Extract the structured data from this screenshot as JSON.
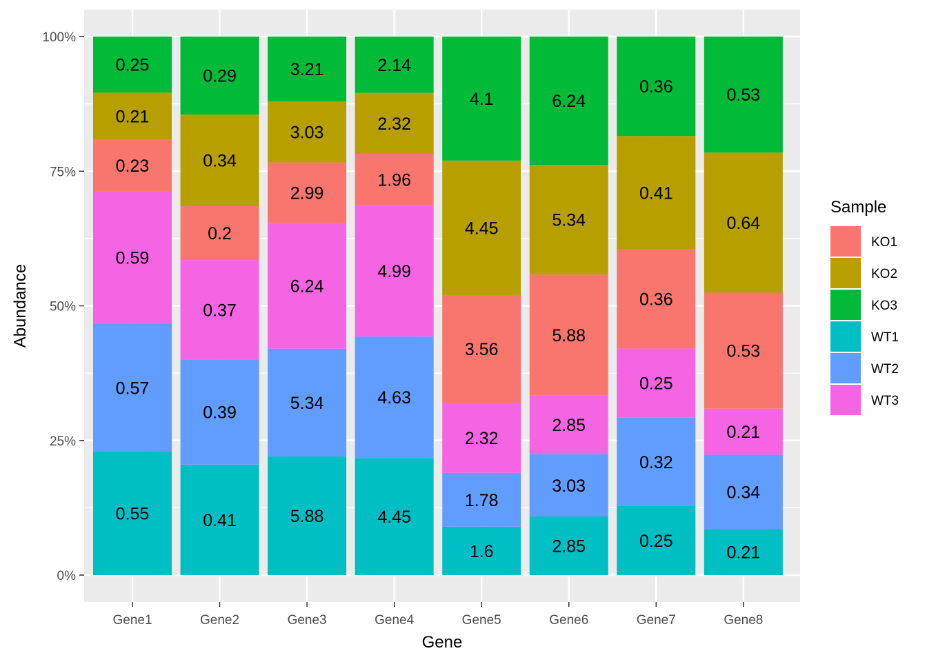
{
  "chart_data": {
    "type": "bar",
    "stacked": true,
    "normalized": true,
    "categories": [
      "Gene1",
      "Gene2",
      "Gene3",
      "Gene4",
      "Gene5",
      "Gene6",
      "Gene7",
      "Gene8"
    ],
    "series": [
      {
        "name": "KO1",
        "color": "#F8766D",
        "values": [
          0.23,
          0.2,
          2.99,
          1.96,
          3.56,
          5.88,
          0.36,
          0.53
        ]
      },
      {
        "name": "KO2",
        "color": "#B79F00",
        "values": [
          0.21,
          0.34,
          3.03,
          2.32,
          4.45,
          5.34,
          0.41,
          0.64
        ]
      },
      {
        "name": "KO3",
        "color": "#00BA38",
        "values": [
          0.25,
          0.29,
          3.21,
          2.14,
          4.1,
          6.24,
          0.36,
          0.53
        ]
      },
      {
        "name": "WT1",
        "color": "#00BFC4",
        "values": [
          0.55,
          0.41,
          5.88,
          4.45,
          1.6,
          2.85,
          0.25,
          0.21
        ]
      },
      {
        "name": "WT2",
        "color": "#619CFF",
        "values": [
          0.57,
          0.39,
          5.34,
          4.63,
          1.78,
          3.03,
          0.32,
          0.34
        ]
      },
      {
        "name": "WT3",
        "color": "#F564E3",
        "values": [
          0.59,
          0.37,
          6.24,
          4.99,
          2.32,
          2.85,
          0.25,
          0.21
        ]
      }
    ],
    "stack_order_bottom_to_top": [
      "WT1",
      "WT2",
      "WT3",
      "KO1",
      "KO2",
      "KO3"
    ],
    "xlabel": "Gene",
    "ylabel": "Abundance",
    "ylim": [
      0,
      1
    ],
    "yticks": [
      {
        "value": 0,
        "label": "0%"
      },
      {
        "value": 0.25,
        "label": "25%"
      },
      {
        "value": 0.5,
        "label": "50%"
      },
      {
        "value": 0.75,
        "label": "75%"
      },
      {
        "value": 1,
        "label": "100%"
      }
    ],
    "grid": true,
    "legend": {
      "title": "Sample",
      "position": "right"
    },
    "panel_background": "#EBEBEB"
  }
}
